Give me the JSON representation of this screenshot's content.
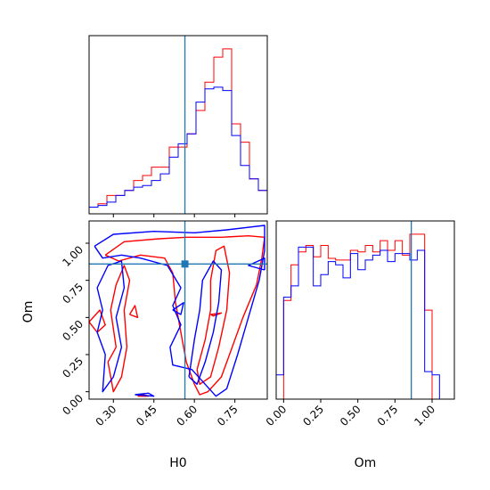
{
  "colors": {
    "series_a": "#ff0000",
    "series_b": "#0000ff",
    "truth": "#1f77b4",
    "frame": "#000000"
  },
  "chart_data": [
    {
      "type": "histogram",
      "parameter": "H0",
      "xlim": [
        0.21,
        0.87
      ],
      "xticks": [
        0.3,
        0.45,
        0.6,
        0.75
      ],
      "tick_labels_shown": false,
      "truth": 0.565,
      "bins": [
        0.21,
        0.243,
        0.276,
        0.309,
        0.342,
        0.375,
        0.408,
        0.441,
        0.474,
        0.507,
        0.54,
        0.573,
        0.606,
        0.639,
        0.672,
        0.705,
        0.738,
        0.771,
        0.804,
        0.837,
        0.87
      ],
      "series": [
        {
          "counts": [
            4,
            6,
            11,
            11,
            14,
            20,
            23,
            28,
            28,
            40,
            40,
            48,
            62,
            79,
            94,
            99,
            54,
            43,
            21,
            14
          ]
        },
        {
          "counts": [
            4,
            5,
            7,
            11,
            14,
            16,
            17,
            20,
            24,
            34,
            42,
            48,
            67,
            75,
            76,
            74,
            47,
            29,
            21,
            14
          ]
        }
      ]
    },
    {
      "type": "contour",
      "x_parameter": "H0",
      "y_parameter": "Om",
      "xlabel": "H0",
      "ylabel": "Om",
      "xlim": [
        0.21,
        0.87
      ],
      "ylim": [
        -0.05,
        1.15
      ],
      "xtick_labels": [
        "0.30",
        "0.45",
        "0.60",
        "0.75"
      ],
      "xticks": [
        0.3,
        0.45,
        0.6,
        0.75
      ],
      "ytick_labels": [
        "0.00",
        "0.25",
        "0.50",
        "0.75",
        "1.00"
      ],
      "yticks": [
        0.0,
        0.25,
        0.5,
        0.75,
        1.0
      ],
      "truth": [
        0.565,
        0.86
      ],
      "series": [
        {
          "contours": [
            [
              [
                0.27,
                0.92
              ],
              [
                0.34,
                1.01
              ],
              [
                0.47,
                1.03
              ],
              [
                0.57,
                1.04
              ],
              [
                0.7,
                1.04
              ],
              [
                0.8,
                1.05
              ],
              [
                0.86,
                1.04
              ],
              [
                0.85,
                0.9
              ],
              [
                0.83,
                0.72
              ],
              [
                0.78,
                0.5
              ],
              [
                0.74,
                0.3
              ],
              [
                0.7,
                0.1
              ],
              [
                0.65,
                0.0
              ],
              [
                0.62,
                -0.02
              ],
              [
                0.6,
                0.05
              ],
              [
                0.57,
                0.2
              ],
              [
                0.55,
                0.4
              ],
              [
                0.53,
                0.6
              ],
              [
                0.52,
                0.8
              ],
              [
                0.49,
                0.9
              ],
              [
                0.4,
                0.92
              ],
              [
                0.32,
                0.88
              ],
              [
                0.27,
                0.92
              ]
            ],
            [
              [
                0.28,
                0.2
              ],
              [
                0.31,
                0.3
              ],
              [
                0.29,
                0.55
              ],
              [
                0.31,
                0.72
              ],
              [
                0.34,
                0.85
              ],
              [
                0.36,
                0.75
              ],
              [
                0.34,
                0.55
              ],
              [
                0.35,
                0.3
              ],
              [
                0.33,
                0.1
              ],
              [
                0.3,
                0.0
              ],
              [
                0.28,
                0.2
              ]
            ],
            [
              [
                0.61,
                0.15
              ],
              [
                0.64,
                0.35
              ],
              [
                0.66,
                0.55
              ],
              [
                0.66,
                0.75
              ],
              [
                0.68,
                0.95
              ],
              [
                0.71,
                0.98
              ],
              [
                0.73,
                0.8
              ],
              [
                0.72,
                0.55
              ],
              [
                0.69,
                0.3
              ],
              [
                0.66,
                0.1
              ],
              [
                0.62,
                0.05
              ],
              [
                0.61,
                0.15
              ]
            ],
            [
              [
                0.21,
                0.47
              ],
              [
                0.25,
                0.55
              ],
              [
                0.27,
                0.45
              ],
              [
                0.24,
                0.4
              ],
              [
                0.21,
                0.47
              ]
            ],
            [
              [
                0.36,
                0.52
              ],
              [
                0.38,
                0.58
              ],
              [
                0.39,
                0.5
              ],
              [
                0.36,
                0.52
              ]
            ],
            [
              [
                0.66,
                0.52
              ],
              [
                0.7,
                0.53
              ],
              [
                0.67,
                0.51
              ],
              [
                0.66,
                0.52
              ]
            ],
            [
              [
                0.39,
                -0.03
              ],
              [
                0.43,
                -0.03
              ],
              [
                0.41,
                -0.02
              ],
              [
                0.39,
                -0.03
              ]
            ]
          ]
        },
        {
          "contours": [
            [
              [
                0.23,
                0.98
              ],
              [
                0.3,
                1.06
              ],
              [
                0.45,
                1.08
              ],
              [
                0.6,
                1.07
              ],
              [
                0.72,
                1.09
              ],
              [
                0.86,
                1.12
              ],
              [
                0.86,
                0.95
              ],
              [
                0.84,
                0.75
              ],
              [
                0.8,
                0.5
              ],
              [
                0.76,
                0.25
              ],
              [
                0.72,
                0.02
              ],
              [
                0.68,
                -0.03
              ],
              [
                0.64,
                0.05
              ],
              [
                0.59,
                0.15
              ],
              [
                0.52,
                0.18
              ],
              [
                0.51,
                0.3
              ],
              [
                0.55,
                0.45
              ],
              [
                0.52,
                0.58
              ],
              [
                0.55,
                0.7
              ],
              [
                0.5,
                0.85
              ],
              [
                0.4,
                0.9
              ],
              [
                0.33,
                0.92
              ],
              [
                0.26,
                0.9
              ],
              [
                0.23,
                0.98
              ]
            ],
            [
              [
                0.27,
                0.25
              ],
              [
                0.24,
                0.4
              ],
              [
                0.26,
                0.55
              ],
              [
                0.24,
                0.7
              ],
              [
                0.28,
                0.85
              ],
              [
                0.33,
                0.88
              ],
              [
                0.34,
                0.7
              ],
              [
                0.31,
                0.5
              ],
              [
                0.33,
                0.3
              ],
              [
                0.3,
                0.1
              ],
              [
                0.26,
                0.0
              ],
              [
                0.27,
                0.25
              ]
            ],
            [
              [
                0.58,
                0.1
              ],
              [
                0.6,
                0.35
              ],
              [
                0.62,
                0.55
              ],
              [
                0.63,
                0.75
              ],
              [
                0.67,
                0.88
              ],
              [
                0.7,
                0.82
              ],
              [
                0.69,
                0.6
              ],
              [
                0.67,
                0.4
              ],
              [
                0.64,
                0.2
              ],
              [
                0.61,
                0.05
              ],
              [
                0.58,
                0.1
              ]
            ],
            [
              [
                0.52,
                0.55
              ],
              [
                0.56,
                0.6
              ],
              [
                0.55,
                0.52
              ],
              [
                0.52,
                0.55
              ]
            ],
            [
              [
                0.86,
                0.82
              ],
              [
                0.8,
                0.85
              ],
              [
                0.86,
                0.9
              ],
              [
                0.86,
                0.82
              ]
            ],
            [
              [
                0.38,
                -0.02
              ],
              [
                0.43,
                -0.01
              ],
              [
                0.45,
                -0.03
              ],
              [
                0.38,
                -0.02
              ]
            ]
          ]
        }
      ]
    },
    {
      "type": "histogram",
      "parameter": "Om",
      "xlabel": "Om",
      "xlim": [
        -0.05,
        1.15
      ],
      "xtick_labels": [
        "0.00",
        "0.25",
        "0.50",
        "0.75",
        "1.00"
      ],
      "xticks": [
        0.0,
        0.25,
        0.5,
        0.75,
        1.0
      ],
      "truth": 0.86,
      "bins": [
        -0.05,
        0.0,
        0.05,
        0.1,
        0.15,
        0.2,
        0.25,
        0.3,
        0.35,
        0.4,
        0.45,
        0.5,
        0.55,
        0.6,
        0.65,
        0.7,
        0.75,
        0.8,
        0.85,
        0.9,
        0.95,
        1.0,
        1.05,
        1.1,
        1.15
      ],
      "series": [
        {
          "counts": [
            0,
            61,
            83,
            91,
            95,
            88,
            95,
            87,
            86,
            86,
            92,
            91,
            95,
            91,
            98,
            92,
            98,
            89,
            102,
            102,
            55,
            0,
            0,
            0
          ]
        },
        {
          "counts": [
            15,
            63,
            70,
            94,
            94,
            70,
            77,
            85,
            83,
            75,
            90,
            80,
            86,
            89,
            92,
            85,
            90,
            90,
            86,
            92,
            17,
            15,
            0,
            0
          ]
        }
      ]
    }
  ]
}
